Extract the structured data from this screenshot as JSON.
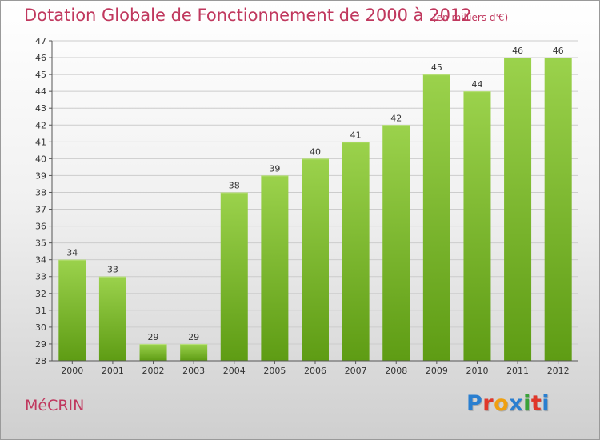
{
  "header": {
    "title": "Dotation Globale de Fonctionnement de 2000 à 2012",
    "unit": "(en milliers d'€)"
  },
  "footer": {
    "commune": "MéCRIN",
    "brand": "Proxiti",
    "brand_colors": [
      "#2a7fd0",
      "#e0372a",
      "#f0a010",
      "#2a7fd0",
      "#3aa23a",
      "#e0372a",
      "#2a7fd0"
    ]
  },
  "colors": {
    "title": "#c0385e",
    "bar_light": "#9bd24c",
    "bar_dark": "#5e9c14",
    "grid": "#cccccc",
    "axis": "#555555"
  },
  "chart_data": {
    "type": "bar",
    "categories": [
      "2000",
      "2001",
      "2002",
      "2003",
      "2004",
      "2005",
      "2006",
      "2007",
      "2008",
      "2009",
      "2010",
      "2011",
      "2012"
    ],
    "values": [
      34,
      33,
      29,
      29,
      38,
      39,
      40,
      41,
      42,
      45,
      44,
      46,
      46
    ],
    "data_labels": [
      "34",
      "33",
      "29",
      "29",
      "38",
      "39",
      "40",
      "41",
      "42",
      "45",
      "44",
      "46",
      "46"
    ],
    "ylim": [
      28,
      47
    ],
    "yticks": [
      "28",
      "29",
      "30",
      "31",
      "32",
      "33",
      "34",
      "35",
      "36",
      "37",
      "38",
      "39",
      "40",
      "41",
      "42",
      "43",
      "44",
      "45",
      "46",
      "47"
    ],
    "grid": true,
    "legend": "none"
  }
}
